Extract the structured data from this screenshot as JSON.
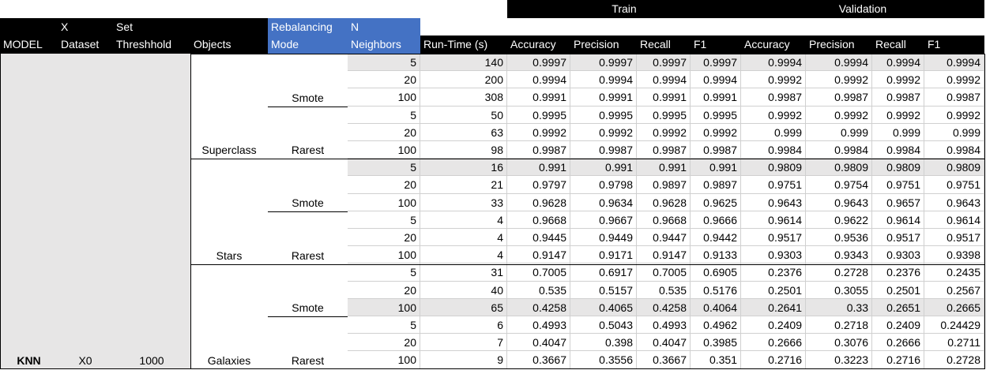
{
  "groups": {
    "train": "Train",
    "validation": "Validation"
  },
  "headers": {
    "model": "MODEL",
    "x_dataset": [
      "X",
      "Dataset"
    ],
    "set_threshold": [
      "Set",
      "Threshhold"
    ],
    "objects": "Objects",
    "rebalancing": [
      "Rebalancing",
      "Mode"
    ],
    "neighbors": [
      "N",
      "Neighbors"
    ],
    "runtime": "Run-Time (s)",
    "train_metrics": [
      "Accuracy",
      "Precision",
      "Recall",
      "F1"
    ],
    "val_metrics": [
      "Accuracy",
      "Precision",
      "Recall",
      "F1"
    ]
  },
  "labels": {
    "model": "KNN",
    "x_dataset": "X0",
    "set_threshold": "1000",
    "objects": [
      "Superclass",
      "Stars",
      "Galaxies"
    ],
    "modes": [
      "Smote",
      "Rarest",
      "Smote",
      "Rarest",
      "Smote",
      "Rarest"
    ]
  },
  "rows": [
    [
      "5",
      "140",
      "0.9997",
      "0.9997",
      "0.9997",
      "0.9997",
      "0.9994",
      "0.9994",
      "0.9994",
      "0.9994"
    ],
    [
      "20",
      "200",
      "0.9994",
      "0.9994",
      "0.9994",
      "0.9994",
      "0.9992",
      "0.9992",
      "0.9992",
      "0.9992"
    ],
    [
      "100",
      "308",
      "0.9991",
      "0.9991",
      "0.9991",
      "0.9991",
      "0.9987",
      "0.9987",
      "0.9987",
      "0.9987"
    ],
    [
      "5",
      "50",
      "0.9995",
      "0.9995",
      "0.9995",
      "0.9995",
      "0.9992",
      "0.9992",
      "0.9992",
      "0.9992"
    ],
    [
      "20",
      "63",
      "0.9992",
      "0.9992",
      "0.9992",
      "0.9992",
      "0.999",
      "0.999",
      "0.999",
      "0.999"
    ],
    [
      "100",
      "98",
      "0.9987",
      "0.9987",
      "0.9987",
      "0.9987",
      "0.9984",
      "0.9984",
      "0.9984",
      "0.9984"
    ],
    [
      "5",
      "16",
      "0.991",
      "0.991",
      "0.991",
      "0.991",
      "0.9809",
      "0.9809",
      "0.9809",
      "0.9809"
    ],
    [
      "20",
      "21",
      "0.9797",
      "0.9798",
      "0.9897",
      "0.9897",
      "0.9751",
      "0.9754",
      "0.9751",
      "0.9751"
    ],
    [
      "100",
      "33",
      "0.9628",
      "0.9634",
      "0.9628",
      "0.9625",
      "0.9643",
      "0.9643",
      "0.9657",
      "0.9643"
    ],
    [
      "5",
      "4",
      "0.9668",
      "0.9667",
      "0.9668",
      "0.9666",
      "0.9614",
      "0.9622",
      "0.9614",
      "0.9614"
    ],
    [
      "20",
      "4",
      "0.9445",
      "0.9449",
      "0.9447",
      "0.9442",
      "0.9517",
      "0.9536",
      "0.9517",
      "0.9517"
    ],
    [
      "100",
      "4",
      "0.9147",
      "0.9171",
      "0.9147",
      "0.9133",
      "0.9303",
      "0.9343",
      "0.9303",
      "0.9398"
    ],
    [
      "5",
      "31",
      "0.7005",
      "0.6917",
      "0.7005",
      "0.6905",
      "0.2376",
      "0.2728",
      "0.2376",
      "0.2435"
    ],
    [
      "20",
      "40",
      "0.535",
      "0.5157",
      "0.535",
      "0.5176",
      "0.2501",
      "0.3055",
      "0.2501",
      "0.2567"
    ],
    [
      "100",
      "65",
      "0.4258",
      "0.4065",
      "0.4258",
      "0.4064",
      "0.2641",
      "0.33",
      "0.2651",
      "0.2665"
    ],
    [
      "5",
      "6",
      "0.4993",
      "0.5043",
      "0.4993",
      "0.4962",
      "0.2409",
      "0.2718",
      "0.2409",
      "0.24429"
    ],
    [
      "20",
      "7",
      "0.4047",
      "0.398",
      "0.4047",
      "0.3985",
      "0.2666",
      "0.3076",
      "0.2666",
      "0.2711"
    ],
    [
      "100",
      "9",
      "0.3667",
      "0.3556",
      "0.3667",
      "0.351",
      "0.2716",
      "0.3223",
      "0.2716",
      "0.2728"
    ]
  ],
  "shaded_rows": [
    0,
    6,
    14
  ],
  "colors": {
    "header": "#000000",
    "header_text": "#ffffff",
    "accent": "#4472c4",
    "shade": "#e7e6e6"
  }
}
